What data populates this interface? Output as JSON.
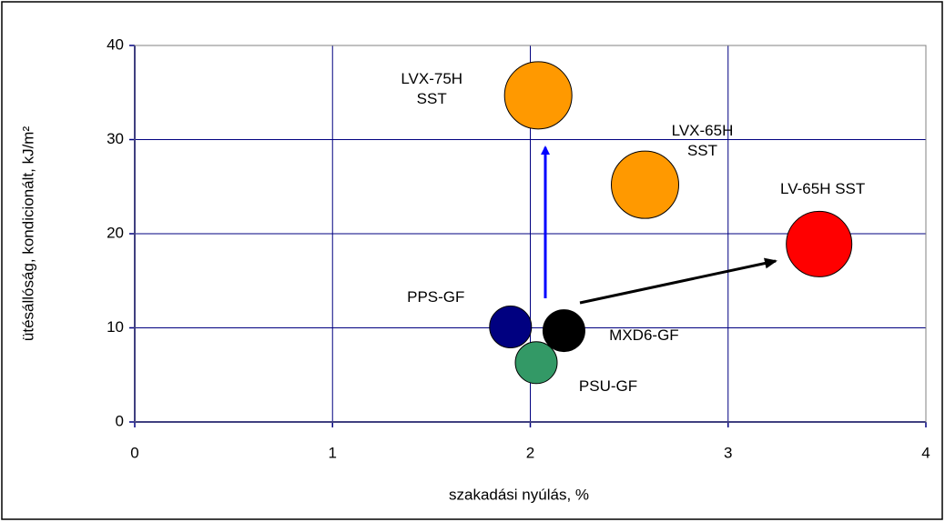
{
  "chart_data": {
    "type": "bubble",
    "xlabel": "szakadási nyúlás, %",
    "ylabel": "ütésállóság, kondicionált, kJ/m²",
    "xlim": [
      0,
      4
    ],
    "xticks": [
      0,
      1,
      2,
      3,
      4
    ],
    "ylim": [
      0,
      40
    ],
    "yticks": [
      0,
      10,
      20,
      30,
      40
    ],
    "grid": true,
    "series": [
      {
        "name": "LVX-75H SST",
        "color": "#ff9900",
        "x": [
          2.04
        ],
        "values": [
          34.7
        ],
        "sizes": [
          37
        ]
      },
      {
        "name": "LVX-65H SST",
        "color": "#ff9900",
        "x": [
          2.58
        ],
        "values": [
          25.2
        ],
        "sizes": [
          37
        ]
      },
      {
        "name": "LV-65H SST",
        "color": "#ff0000",
        "x": [
          3.46
        ],
        "values": [
          18.9
        ],
        "sizes": [
          36
        ]
      },
      {
        "name": "PPS-GF",
        "color": "#000080",
        "x": [
          1.9
        ],
        "values": [
          10.1
        ],
        "sizes": [
          23
        ]
      },
      {
        "name": "MXD6-GF",
        "color": "#000000",
        "x": [
          2.17
        ],
        "values": [
          9.7
        ],
        "sizes": [
          23
        ]
      },
      {
        "name": "PSU-GF",
        "color": "#339966",
        "x": [
          2.03
        ],
        "values": [
          6.3
        ],
        "sizes": [
          23
        ]
      }
    ]
  }
}
